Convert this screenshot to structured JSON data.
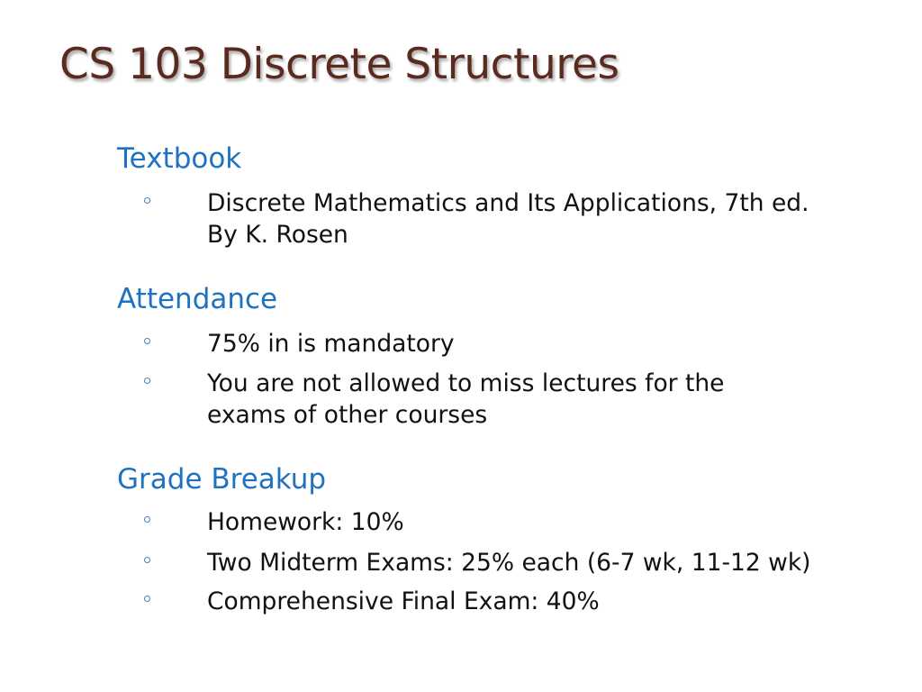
{
  "title": "CS 103 Discrete Structures",
  "sections": [
    {
      "heading": "Textbook",
      "items": [
        {
          "lines": [
            "Discrete Mathematics and Its Applications, 7th  ed.",
            "By K. Rosen"
          ]
        }
      ]
    },
    {
      "heading": "Attendance",
      "items": [
        {
          "lines": [
            "75% in is mandatory"
          ]
        },
        {
          "lines": [
            "You are not allowed to miss lectures for the",
            "exams of other courses"
          ]
        }
      ]
    },
    {
      "heading": "Grade Breakup",
      "items": [
        {
          "lines": [
            "Homework: 10%"
          ]
        },
        {
          "lines": [
            "Two Midterm Exams: 25% each (6-7 wk, 11-12 wk)"
          ]
        },
        {
          "lines": [
            "Comprehensive Final Exam: 40%"
          ]
        }
      ]
    }
  ],
  "colors": {
    "title": "#5b2a1f",
    "heading": "#1f72bf",
    "text": "#111111"
  }
}
